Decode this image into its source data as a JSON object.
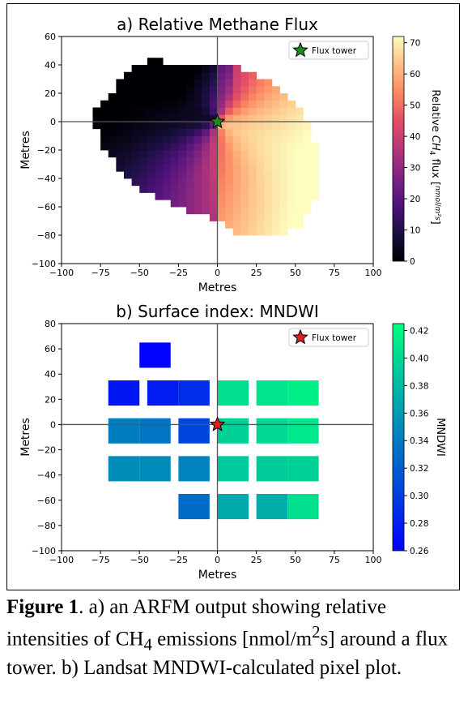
{
  "figure": {
    "caption_label": "Figure 1",
    "caption_text": ". a) an ARFM output showing relative intensities of CH",
    "caption_sub": "4",
    "caption_text2": " emissions [nmol/m",
    "caption_sup": "2",
    "caption_text3": "s] around a flux tower. b) Landsat MNDWI-calculated pixel plot."
  },
  "chart_data": [
    {
      "type": "heatmap",
      "title": "a) Relative Methane Flux",
      "xlabel": "Metres",
      "ylabel": "Metres",
      "xlim": [
        -100,
        100
      ],
      "ylim": [
        -100,
        60
      ],
      "xticks": [
        -100,
        -75,
        -50,
        -25,
        0,
        25,
        50,
        75,
        100
      ],
      "yticks": [
        -100,
        -80,
        -60,
        -40,
        -20,
        0,
        20,
        40,
        60
      ],
      "colorbar": {
        "label_prefix": "Relative ",
        "label_ch": "CH",
        "label_sub": "4",
        "label_suffix": " flux ",
        "units_num": "nmol",
        "units_den": "m²s",
        "range": [
          0,
          72
        ],
        "ticks": [
          0,
          10,
          20,
          30,
          40,
          50,
          60,
          70
        ],
        "colormap": "magma"
      },
      "legend": {
        "label": "Flux tower",
        "marker_color": "#1e8c1e",
        "position": "top-right"
      },
      "tower": {
        "x": 0,
        "y": 0
      },
      "footprint_boundary": [
        [
          -40,
          44
        ],
        [
          -35,
          44
        ],
        [
          -30,
          40
        ],
        [
          0,
          40
        ],
        [
          15,
          38
        ],
        [
          25,
          34
        ],
        [
          35,
          28
        ],
        [
          45,
          20
        ],
        [
          52,
          12
        ],
        [
          57,
          2
        ],
        [
          60,
          -8
        ],
        [
          63,
          -18
        ],
        [
          65,
          -28
        ],
        [
          65,
          -40
        ],
        [
          63,
          -52
        ],
        [
          60,
          -62
        ],
        [
          55,
          -72
        ],
        [
          45,
          -78
        ],
        [
          30,
          -82
        ],
        [
          18,
          -82
        ],
        [
          10,
          -76
        ],
        [
          -10,
          -66
        ],
        [
          -25,
          -60
        ],
        [
          -35,
          -55
        ],
        [
          -50,
          -48
        ],
        [
          -60,
          -38
        ],
        [
          -67,
          -28
        ],
        [
          -72,
          -20
        ],
        [
          -76,
          -10
        ],
        [
          -78,
          0
        ],
        [
          -78,
          8
        ],
        [
          -72,
          14
        ],
        [
          -68,
          20
        ],
        [
          -65,
          27
        ],
        [
          -60,
          33
        ],
        [
          -52,
          38
        ]
      ]
    },
    {
      "type": "heatmap",
      "title": "b) Surface index: MNDWI",
      "xlabel": "Metres",
      "ylabel": "Metres",
      "xlim": [
        -100,
        100
      ],
      "ylim": [
        -100,
        80
      ],
      "xticks": [
        -100,
        -75,
        -50,
        -25,
        0,
        25,
        50,
        75,
        100
      ],
      "yticks": [
        -100,
        -80,
        -60,
        -40,
        -20,
        0,
        20,
        40,
        60,
        80
      ],
      "colorbar": {
        "label": "MNDWI",
        "range": [
          0.26,
          0.425
        ],
        "ticks": [
          0.26,
          0.28,
          0.3,
          0.32,
          0.34,
          0.36,
          0.38,
          0.4,
          0.42
        ],
        "colormap": "winter"
      },
      "legend": {
        "label": "Flux tower",
        "marker_color": "#e02020",
        "position": "top-right"
      },
      "tower": {
        "x": 0,
        "y": 0
      },
      "cell_size": 20,
      "cells": [
        {
          "x": -40,
          "y": 55,
          "value": 0.262
        },
        {
          "x": -60,
          "y": 25,
          "value": 0.275
        },
        {
          "x": -35,
          "y": 25,
          "value": 0.278
        },
        {
          "x": -15,
          "y": 25,
          "value": 0.29
        },
        {
          "x": 10,
          "y": 25,
          "value": 0.405
        },
        {
          "x": 35,
          "y": 25,
          "value": 0.408
        },
        {
          "x": 55,
          "y": 25,
          "value": 0.415
        },
        {
          "x": -60,
          "y": -5,
          "value": 0.34
        },
        {
          "x": -40,
          "y": -5,
          "value": 0.335
        },
        {
          "x": -15,
          "y": -5,
          "value": 0.305
        },
        {
          "x": 10,
          "y": -5,
          "value": 0.395
        },
        {
          "x": 35,
          "y": -5,
          "value": 0.4
        },
        {
          "x": 55,
          "y": -5,
          "value": 0.41
        },
        {
          "x": -60,
          "y": -35,
          "value": 0.352
        },
        {
          "x": -40,
          "y": -35,
          "value": 0.35
        },
        {
          "x": -15,
          "y": -35,
          "value": 0.345
        },
        {
          "x": 10,
          "y": -35,
          "value": 0.39
        },
        {
          "x": 35,
          "y": -35,
          "value": 0.392
        },
        {
          "x": 55,
          "y": -35,
          "value": 0.395
        },
        {
          "x": -15,
          "y": -65,
          "value": 0.33
        },
        {
          "x": 10,
          "y": -65,
          "value": 0.37
        },
        {
          "x": 35,
          "y": -65,
          "value": 0.372
        },
        {
          "x": 55,
          "y": -65,
          "value": 0.405
        }
      ]
    }
  ]
}
